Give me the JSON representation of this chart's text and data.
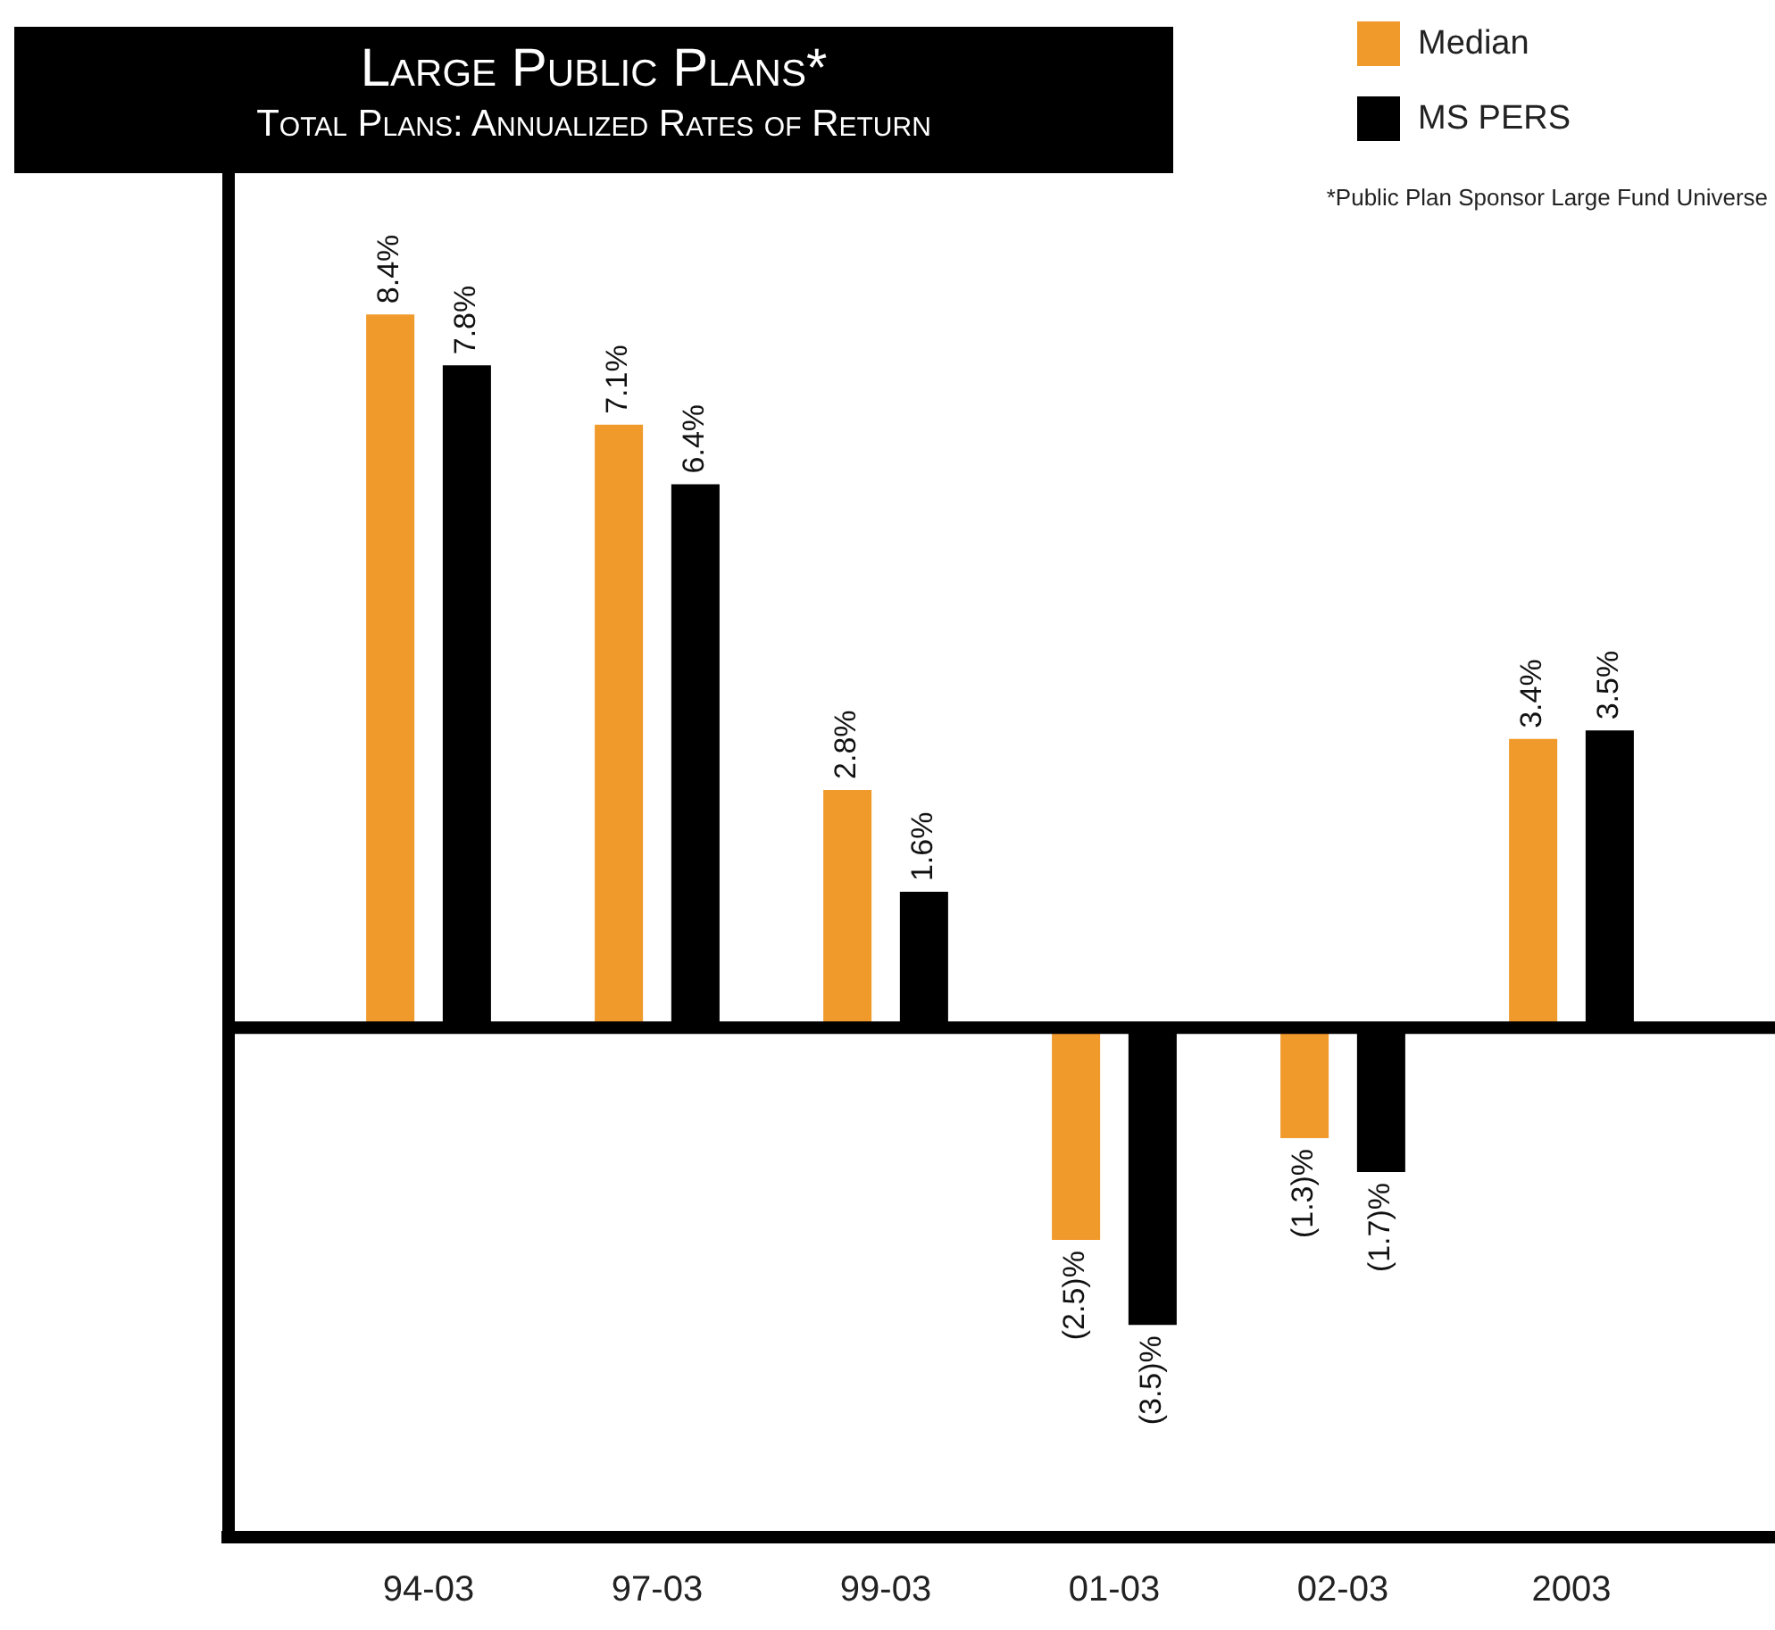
{
  "chart_data": {
    "type": "bar",
    "title": "Large Public Plans*",
    "subtitle": "Total Plans: Annualized Rates of Return",
    "categories": [
      "94-03",
      "97-03",
      "99-03",
      "01-03",
      "02-03",
      "2003"
    ],
    "series": [
      {
        "name": "Median",
        "color": "#f09a2c",
        "values": [
          8.4,
          7.1,
          2.8,
          -2.5,
          -1.3,
          3.4
        ],
        "value_labels": [
          "8.4%",
          "7.1%",
          "2.8%",
          "(2.5)%",
          "(1.3)%",
          "3.4%"
        ]
      },
      {
        "name": "MS PERS",
        "color": "#000000",
        "values": [
          7.8,
          6.4,
          1.6,
          -3.5,
          -1.7,
          3.5
        ],
        "value_labels": [
          "7.8%",
          "6.4%",
          "1.6%",
          "(3.5)%",
          "(1.7)%",
          "3.5%"
        ]
      }
    ],
    "ylim": [
      -6,
      10
    ],
    "tick_labels": "x",
    "grid": false,
    "legend": "top right",
    "annotations": [
      "*Public Plan Sponsor Large Fund Universe"
    ]
  }
}
